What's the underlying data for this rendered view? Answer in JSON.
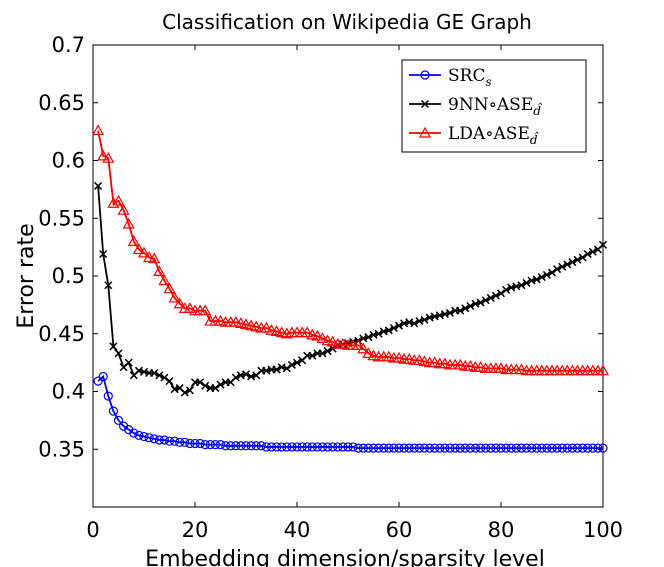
{
  "chart_data": {
    "type": "line",
    "title": "Classification on Wikipedia GE Graph",
    "xlabel": "Embedding dimension/sparsity level",
    "ylabel": "Error rate",
    "xlim": [
      0,
      100
    ],
    "ylim": [
      0.3,
      0.7
    ],
    "xticks": [
      0,
      20,
      40,
      60,
      80,
      100
    ],
    "xtick_labels": [
      "0",
      "20",
      "40",
      "60",
      "80",
      "100"
    ],
    "yticks": [
      0.35,
      0.4,
      0.45,
      0.5,
      0.55,
      0.6,
      0.65,
      0.7
    ],
    "ytick_labels": [
      "0.35",
      "0.4",
      "0.45",
      "0.5",
      "0.55",
      "0.6",
      "0.65",
      "0.7"
    ],
    "grid": false,
    "legend_position": "top-right",
    "x": [
      1,
      2,
      3,
      4,
      5,
      6,
      7,
      8,
      9,
      10,
      11,
      12,
      13,
      14,
      15,
      16,
      17,
      18,
      19,
      20,
      21,
      22,
      23,
      24,
      25,
      26,
      27,
      28,
      29,
      30,
      31,
      32,
      33,
      34,
      35,
      36,
      37,
      38,
      39,
      40,
      41,
      42,
      43,
      44,
      45,
      46,
      47,
      48,
      49,
      50,
      51,
      52,
      53,
      54,
      55,
      56,
      57,
      58,
      59,
      60,
      61,
      62,
      63,
      64,
      65,
      66,
      67,
      68,
      69,
      70,
      71,
      72,
      73,
      74,
      75,
      76,
      77,
      78,
      79,
      80,
      81,
      82,
      83,
      84,
      85,
      86,
      87,
      88,
      89,
      90,
      91,
      92,
      93,
      94,
      95,
      96,
      97,
      98,
      99,
      100
    ],
    "series": [
      {
        "name": "SRC",
        "name_sub": "s",
        "color": "#0000ff",
        "marker": "circle",
        "values": [
          0.409,
          0.413,
          0.396,
          0.383,
          0.375,
          0.37,
          0.367,
          0.364,
          0.362,
          0.361,
          0.36,
          0.359,
          0.358,
          0.358,
          0.357,
          0.357,
          0.356,
          0.356,
          0.355,
          0.355,
          0.355,
          0.354,
          0.354,
          0.354,
          0.354,
          0.353,
          0.353,
          0.353,
          0.353,
          0.353,
          0.353,
          0.353,
          0.353,
          0.352,
          0.352,
          0.352,
          0.352,
          0.352,
          0.352,
          0.352,
          0.352,
          0.352,
          0.352,
          0.352,
          0.352,
          0.352,
          0.352,
          0.352,
          0.352,
          0.352,
          0.352,
          0.351,
          0.351,
          0.351,
          0.351,
          0.351,
          0.351,
          0.351,
          0.351,
          0.351,
          0.351,
          0.351,
          0.351,
          0.351,
          0.351,
          0.351,
          0.351,
          0.351,
          0.351,
          0.351,
          0.351,
          0.351,
          0.351,
          0.351,
          0.351,
          0.351,
          0.351,
          0.351,
          0.351,
          0.351,
          0.351,
          0.351,
          0.351,
          0.351,
          0.351,
          0.351,
          0.351,
          0.351,
          0.351,
          0.351,
          0.351,
          0.351,
          0.351,
          0.351,
          0.351,
          0.351,
          0.351,
          0.351,
          0.351,
          0.351
        ]
      },
      {
        "name": "9NN∘ASE",
        "name_sub": "d̂",
        "color": "#000000",
        "marker": "x",
        "values": [
          0.578,
          0.519,
          0.492,
          0.439,
          0.433,
          0.421,
          0.425,
          0.414,
          0.418,
          0.417,
          0.416,
          0.416,
          0.414,
          0.412,
          0.409,
          0.402,
          0.403,
          0.399,
          0.401,
          0.408,
          0.408,
          0.405,
          0.403,
          0.403,
          0.406,
          0.408,
          0.408,
          0.412,
          0.414,
          0.415,
          0.413,
          0.414,
          0.418,
          0.418,
          0.419,
          0.419,
          0.421,
          0.42,
          0.423,
          0.425,
          0.427,
          0.431,
          0.431,
          0.433,
          0.433,
          0.435,
          0.437,
          0.44,
          0.441,
          0.442,
          0.443,
          0.444,
          0.446,
          0.447,
          0.449,
          0.45,
          0.452,
          0.453,
          0.455,
          0.457,
          0.459,
          0.46,
          0.459,
          0.461,
          0.462,
          0.464,
          0.465,
          0.466,
          0.467,
          0.468,
          0.47,
          0.47,
          0.472,
          0.474,
          0.476,
          0.477,
          0.479,
          0.481,
          0.483,
          0.485,
          0.488,
          0.49,
          0.491,
          0.492,
          0.494,
          0.496,
          0.497,
          0.499,
          0.501,
          0.503,
          0.506,
          0.508,
          0.51,
          0.512,
          0.514,
          0.516,
          0.519,
          0.521,
          0.523,
          0.527
        ]
      },
      {
        "name": "LDA∘ASE",
        "name_sub": "d̂",
        "color": "#ff0000",
        "marker": "triangle",
        "values": [
          0.626,
          0.604,
          0.602,
          0.563,
          0.565,
          0.557,
          0.545,
          0.53,
          0.523,
          0.52,
          0.516,
          0.515,
          0.504,
          0.496,
          0.489,
          0.481,
          0.476,
          0.472,
          0.472,
          0.47,
          0.47,
          0.47,
          0.461,
          0.461,
          0.461,
          0.46,
          0.46,
          0.46,
          0.459,
          0.458,
          0.457,
          0.456,
          0.455,
          0.455,
          0.453,
          0.452,
          0.451,
          0.45,
          0.451,
          0.451,
          0.451,
          0.451,
          0.449,
          0.448,
          0.446,
          0.444,
          0.443,
          0.441,
          0.441,
          0.44,
          0.44,
          0.44,
          0.437,
          0.433,
          0.431,
          0.43,
          0.43,
          0.43,
          0.429,
          0.429,
          0.428,
          0.428,
          0.427,
          0.427,
          0.426,
          0.425,
          0.425,
          0.424,
          0.424,
          0.423,
          0.423,
          0.423,
          0.422,
          0.422,
          0.421,
          0.421,
          0.42,
          0.42,
          0.42,
          0.42,
          0.419,
          0.419,
          0.419,
          0.419,
          0.418,
          0.418,
          0.418,
          0.418,
          0.418,
          0.418,
          0.418,
          0.418,
          0.418,
          0.418,
          0.418,
          0.418,
          0.418,
          0.418,
          0.418,
          0.418
        ]
      }
    ]
  }
}
